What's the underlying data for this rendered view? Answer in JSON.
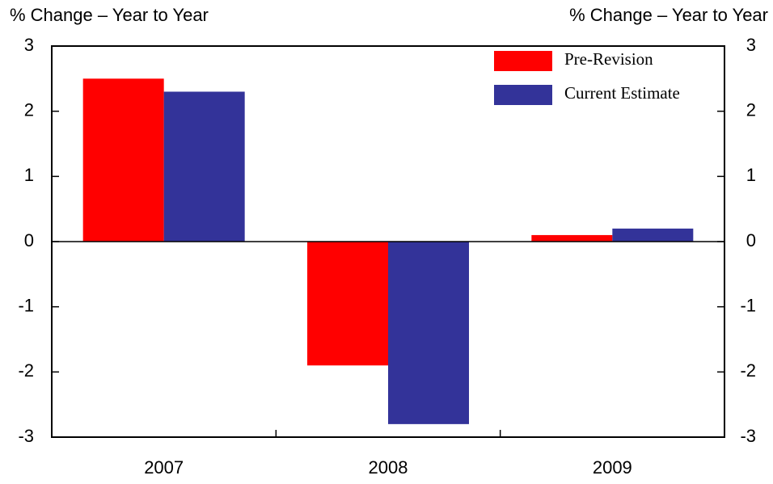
{
  "chart_data": {
    "type": "bar",
    "y_label": "% Change – Year to Year",
    "y2_label": "% Change – Year to Year",
    "categories": [
      "2007",
      "2008",
      "2009"
    ],
    "series": [
      {
        "name": "Pre-Revision",
        "color": "#ff0000",
        "values": [
          2.5,
          -1.9,
          0.1
        ]
      },
      {
        "name": "Current Estimate",
        "color": "#333399",
        "values": [
          2.3,
          -2.8,
          0.2
        ]
      }
    ],
    "ylim": [
      -3,
      3
    ],
    "yticks": [
      -3,
      -2,
      -1,
      0,
      1,
      2,
      3
    ],
    "y2lim": [
      -3,
      3
    ],
    "y2ticks": [
      -3,
      -2,
      -1,
      0,
      1,
      2,
      3
    ],
    "legend": "top-right"
  }
}
